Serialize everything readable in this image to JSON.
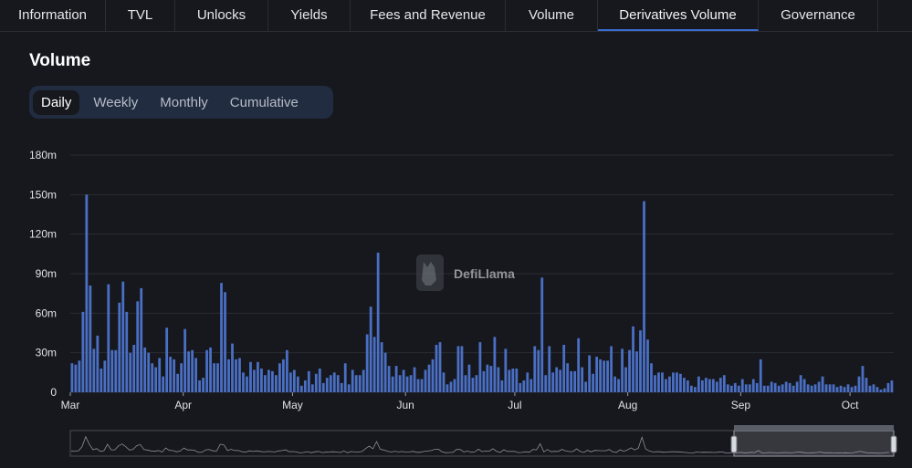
{
  "tabs": [
    {
      "label": "Information",
      "w": 116
    },
    {
      "label": "TVL",
      "w": 76
    },
    {
      "label": "Unlocks",
      "w": 102
    },
    {
      "label": "Yields",
      "w": 90
    },
    {
      "label": "Fees and Revenue",
      "w": 170
    },
    {
      "label": "Volume",
      "w": 101
    },
    {
      "label": "Derivatives Volume",
      "w": 176,
      "active": true
    },
    {
      "label": "Governance",
      "w": 131
    }
  ],
  "section": {
    "title": "Volume"
  },
  "periods": [
    {
      "label": "Daily",
      "active": true
    },
    {
      "label": "Weekly"
    },
    {
      "label": "Monthly"
    },
    {
      "label": "Cumulative"
    }
  ],
  "watermark": {
    "text": "DefiLlama"
  },
  "colors": {
    "bar": "#4a6fc4",
    "grid": "#2a2d33",
    "background": "#16181d"
  },
  "chart_data": {
    "type": "bar",
    "title": "",
    "xlabel": "",
    "ylabel": "",
    "ylim": [
      0,
      180
    ],
    "y_unit": "m",
    "y_ticks": [
      0,
      30,
      60,
      90,
      120,
      150,
      180
    ],
    "y_tick_labels": [
      "0",
      "30m",
      "60m",
      "90m",
      "120m",
      "150m",
      "180m"
    ],
    "x_ticks": [
      "Mar",
      "Apr",
      "May",
      "Jun",
      "Jul",
      "Aug",
      "Sep",
      "Oct"
    ],
    "x_tick_days": [
      0,
      31,
      61,
      92,
      122,
      153,
      184,
      214
    ],
    "grid": true,
    "legend": "none",
    "values": [
      22,
      21,
      24,
      61,
      150,
      81,
      33,
      43,
      18,
      24,
      82,
      32,
      32,
      68,
      84,
      61,
      30,
      36,
      69,
      79,
      34,
      30,
      22,
      19,
      26,
      12,
      49,
      27,
      25,
      14,
      22,
      48,
      31,
      32,
      26,
      9,
      11,
      32,
      34,
      22,
      22,
      83,
      76,
      25,
      37,
      25,
      26,
      15,
      12,
      23,
      17,
      23,
      18,
      13,
      17,
      16,
      13,
      22,
      25,
      32,
      15,
      17,
      12,
      5,
      9,
      16,
      6,
      14,
      18,
      7,
      11,
      13,
      15,
      13,
      7,
      22,
      6,
      17,
      13,
      13,
      17,
      44,
      65,
      42,
      106,
      38,
      30,
      20,
      12,
      20,
      13,
      17,
      12,
      13,
      19,
      10,
      10,
      17,
      21,
      25,
      36,
      38,
      15,
      6,
      8,
      10,
      35,
      35,
      13,
      21,
      11,
      13,
      38,
      16,
      21,
      20,
      42,
      19,
      9,
      33,
      17,
      18,
      18,
      7,
      9,
      15,
      10,
      35,
      32,
      87,
      13,
      35,
      15,
      19,
      17,
      36,
      22,
      16,
      16,
      41,
      19,
      8,
      28,
      14,
      27,
      25,
      24,
      24,
      35,
      12,
      10,
      33,
      19,
      32,
      50,
      31,
      47,
      145,
      40,
      22,
      13,
      15,
      15,
      10,
      12,
      15,
      15,
      14,
      11,
      9,
      5,
      4,
      12,
      9,
      11,
      10,
      10,
      8,
      11,
      13,
      6,
      5,
      7,
      5,
      10,
      6,
      6,
      10,
      7,
      25,
      5,
      5,
      8,
      7,
      5,
      6,
      8,
      7,
      5,
      8,
      13,
      10,
      6,
      5,
      6,
      8,
      12,
      6,
      6,
      6,
      4,
      5,
      4,
      6,
      4,
      5,
      12,
      20,
      11,
      5,
      6,
      4,
      2,
      3,
      7,
      9
    ]
  }
}
